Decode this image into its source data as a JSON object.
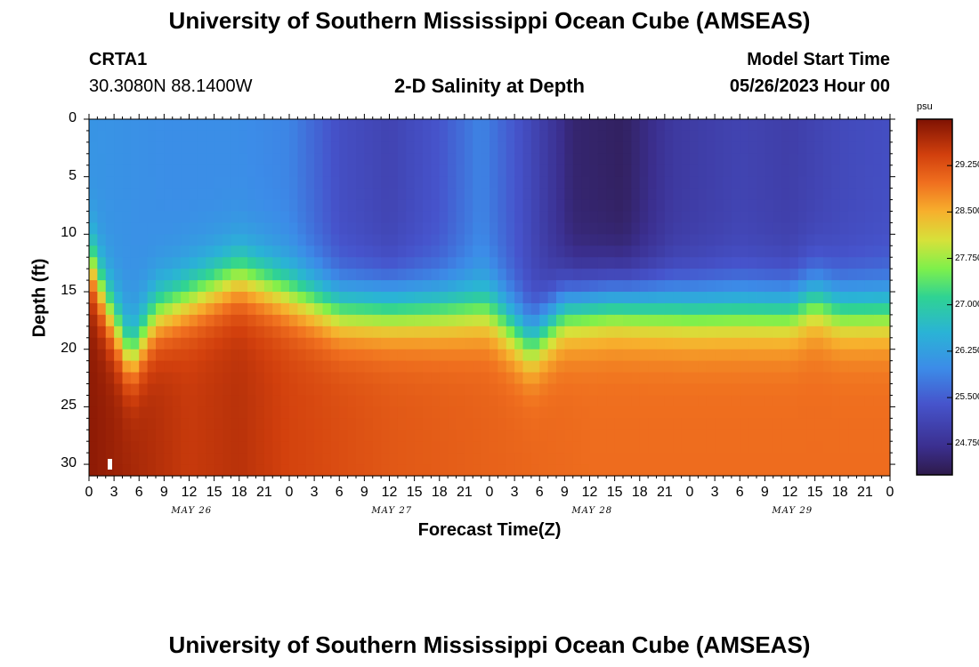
{
  "header": {
    "title": "University of Southern Mississippi Ocean Cube (AMSEAS)",
    "station_id": "CRTA1",
    "station_coords": "30.3080N  88.1400W",
    "plot_title": "2-D Salinity at Depth",
    "model_start_label": "Model Start Time",
    "model_start_value": "05/26/2023 Hour 00"
  },
  "footer": {
    "title": "University of Southern Mississippi Ocean Cube (AMSEAS)"
  },
  "colors": {
    "low": "#2e1a4a",
    "high": "#8a1605"
  },
  "chart_data": {
    "type": "heatmap",
    "title": "2-D Salinity at Depth",
    "xlabel": "Forecast Time(Z)",
    "ylabel": "Depth (ft)",
    "x_hours_range": [
      0,
      96
    ],
    "ylim": [
      0,
      31
    ],
    "y_ticks": [
      0,
      5,
      10,
      15,
      20,
      25,
      30
    ],
    "x_tick_labels": [
      "0",
      "3",
      "6",
      "9",
      "12",
      "15",
      "18",
      "21",
      "0",
      "3",
      "6",
      "9",
      "12",
      "15",
      "18",
      "21",
      "0",
      "3",
      "6",
      "9",
      "12",
      "15",
      "18",
      "21",
      "0",
      "3",
      "6",
      "9",
      "12",
      "15",
      "18",
      "21",
      "0"
    ],
    "day_labels": [
      {
        "label": "MAY 26",
        "hour": 12
      },
      {
        "label": "MAY 27",
        "hour": 36
      },
      {
        "label": "MAY 28",
        "hour": 60
      },
      {
        "label": "MAY 29",
        "hour": 84
      }
    ],
    "colorbar": {
      "unit": "psu",
      "range": [
        24.25,
        30.0
      ],
      "ticks": [
        "29.250",
        "28.500",
        "27.750",
        "27.000",
        "26.250",
        "25.500",
        "24.750"
      ],
      "tick_values": [
        29.25,
        28.5,
        27.75,
        27.0,
        26.25,
        25.5,
        24.75
      ]
    },
    "halocline_depth_ft": [
      {
        "hour": 0,
        "depth": 12
      },
      {
        "hour": 2,
        "depth": 16
      },
      {
        "hour": 5,
        "depth": 21
      },
      {
        "hour": 8,
        "depth": 17
      },
      {
        "hour": 12,
        "depth": 15.5
      },
      {
        "hour": 18,
        "depth": 13.5
      },
      {
        "hour": 24,
        "depth": 15
      },
      {
        "hour": 30,
        "depth": 16.5
      },
      {
        "hour": 42,
        "depth": 16.5
      },
      {
        "hour": 48,
        "depth": 16.5
      },
      {
        "hour": 53,
        "depth": 19.5
      },
      {
        "hour": 57,
        "depth": 16.5
      },
      {
        "hour": 63,
        "depth": 16
      },
      {
        "hour": 72,
        "depth": 16.5
      },
      {
        "hour": 84,
        "depth": 16.5
      },
      {
        "hour": 87,
        "depth": 15.5
      },
      {
        "hour": 90,
        "depth": 16.5
      },
      {
        "hour": 96,
        "depth": 16.5
      }
    ],
    "surface_salinity_psu": [
      {
        "hour": 0,
        "value": 26.1
      },
      {
        "hour": 10,
        "value": 26.0
      },
      {
        "hour": 18,
        "value": 26.0
      },
      {
        "hour": 24,
        "value": 25.9
      },
      {
        "hour": 30,
        "value": 25.3
      },
      {
        "hour": 36,
        "value": 25.1
      },
      {
        "hour": 42,
        "value": 25.4
      },
      {
        "hour": 47,
        "value": 25.9
      },
      {
        "hour": 52,
        "value": 25.3
      },
      {
        "hour": 58,
        "value": 24.5
      },
      {
        "hour": 64,
        "value": 24.4
      },
      {
        "hour": 70,
        "value": 24.9
      },
      {
        "hour": 78,
        "value": 25.1
      },
      {
        "hour": 84,
        "value": 25.0
      },
      {
        "hour": 90,
        "value": 25.2
      },
      {
        "hour": 96,
        "value": 25.3
      }
    ],
    "bottom_salinity_psu": [
      {
        "hour": 0,
        "value": 29.9
      },
      {
        "hour": 6,
        "value": 29.7
      },
      {
        "hour": 12,
        "value": 29.5
      },
      {
        "hour": 18,
        "value": 29.6
      },
      {
        "hour": 24,
        "value": 29.4
      },
      {
        "hour": 36,
        "value": 29.2
      },
      {
        "hour": 48,
        "value": 29.1
      },
      {
        "hour": 60,
        "value": 29.0
      },
      {
        "hour": 72,
        "value": 29.0
      },
      {
        "hour": 84,
        "value": 29.0
      },
      {
        "hour": 96,
        "value": 29.0
      }
    ]
  }
}
